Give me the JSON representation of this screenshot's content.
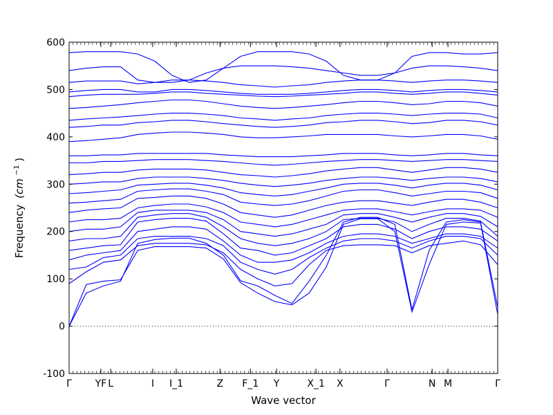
{
  "chart_data": {
    "type": "line",
    "xlabel": "Wave vector",
    "ylabel": "Frequency",
    "ylabel_unit": "(cm",
    "ylabel_exp": "−1",
    "ylim": [
      -100,
      600
    ],
    "yticks": [
      -100,
      0,
      100,
      200,
      300,
      400,
      500,
      600
    ],
    "grid": false,
    "zero_line": "dotted",
    "line_color": "#0000ff",
    "path_points": [
      {
        "label": "Γ",
        "pos": 0.0
      },
      {
        "label": "YF",
        "pos": 0.074
      },
      {
        "label": "L",
        "pos": 0.097
      },
      {
        "label": "I",
        "pos": 0.195
      },
      {
        "label": "I_1",
        "pos": 0.25
      },
      {
        "label": "Z",
        "pos": 0.352
      },
      {
        "label": "F_1",
        "pos": 0.423
      },
      {
        "label": "Y",
        "pos": 0.484
      },
      {
        "label": "X_1",
        "pos": 0.576
      },
      {
        "label": "X",
        "pos": 0.632
      },
      {
        "label": "Γ",
        "pos": 0.742
      },
      {
        "label": "N",
        "pos": 0.847
      },
      {
        "label": "M",
        "pos": 0.884
      },
      {
        "label": "Γ",
        "pos": 1.0
      }
    ],
    "series": [
      {
        "values": [
          0,
          88,
          95,
          98,
          160,
          168,
          168,
          168,
          165,
          142,
          92,
          70,
          52,
          45,
          70,
          125,
          215,
          227,
          227,
          200,
          30,
          130,
          215,
          220,
          218,
          25
        ]
      },
      {
        "values": [
          0,
          70,
          85,
          95,
          175,
          183,
          186,
          186,
          175,
          150,
          96,
          85,
          65,
          48,
          95,
          150,
          220,
          230,
          230,
          215,
          35,
          160,
          220,
          225,
          220,
          40
        ]
      },
      {
        "values": [
          90,
          115,
          135,
          140,
          170,
          175,
          175,
          175,
          172,
          155,
          120,
          100,
          85,
          90,
          130,
          160,
          170,
          172,
          172,
          170,
          155,
          170,
          175,
          180,
          172,
          130
        ]
      },
      {
        "values": [
          120,
          125,
          145,
          150,
          185,
          190,
          190,
          190,
          185,
          170,
          135,
          120,
          110,
          120,
          145,
          165,
          180,
          185,
          185,
          180,
          165,
          180,
          190,
          190,
          185,
          150
        ]
      },
      {
        "values": [
          140,
          150,
          155,
          160,
          200,
          205,
          210,
          210,
          205,
          180,
          150,
          135,
          135,
          140,
          155,
          175,
          190,
          195,
          195,
          190,
          175,
          185,
          195,
          195,
          190,
          165
        ]
      },
      {
        "values": [
          160,
          165,
          170,
          172,
          220,
          225,
          228,
          228,
          222,
          195,
          165,
          160,
          150,
          155,
          170,
          185,
          210,
          215,
          215,
          205,
          185,
          200,
          210,
          210,
          205,
          180
        ]
      },
      {
        "values": [
          180,
          185,
          185,
          190,
          230,
          235,
          238,
          238,
          230,
          210,
          185,
          175,
          170,
          175,
          185,
          200,
          225,
          228,
          228,
          220,
          200,
          215,
          228,
          228,
          222,
          190
        ]
      },
      {
        "values": [
          200,
          205,
          205,
          210,
          240,
          245,
          245,
          245,
          240,
          225,
          200,
          195,
          190,
          195,
          205,
          215,
          235,
          238,
          238,
          230,
          220,
          230,
          238,
          238,
          232,
          210
        ]
      },
      {
        "values": [
          220,
          225,
          225,
          228,
          250,
          255,
          258,
          258,
          252,
          240,
          220,
          215,
          210,
          215,
          225,
          235,
          245,
          248,
          248,
          242,
          235,
          242,
          248,
          248,
          245,
          230
        ]
      },
      {
        "values": [
          240,
          245,
          248,
          250,
          270,
          272,
          275,
          275,
          270,
          258,
          240,
          235,
          230,
          235,
          245,
          255,
          262,
          265,
          265,
          260,
          255,
          262,
          268,
          268,
          262,
          250
        ]
      },
      {
        "values": [
          260,
          262,
          265,
          268,
          285,
          288,
          290,
          290,
          285,
          278,
          262,
          258,
          255,
          258,
          265,
          275,
          285,
          288,
          288,
          282,
          275,
          280,
          285,
          285,
          282,
          270
        ]
      },
      {
        "values": [
          280,
          282,
          285,
          288,
          298,
          300,
          302,
          302,
          298,
          292,
          282,
          278,
          275,
          278,
          285,
          292,
          300,
          302,
          302,
          298,
          292,
          298,
          302,
          302,
          298,
          288
        ]
      },
      {
        "values": [
          300,
          302,
          305,
          305,
          312,
          315,
          315,
          315,
          312,
          308,
          302,
          298,
          295,
          298,
          302,
          308,
          312,
          315,
          315,
          312,
          308,
          312,
          315,
          315,
          312,
          305
        ]
      },
      {
        "values": [
          320,
          322,
          325,
          325,
          330,
          332,
          332,
          332,
          330,
          325,
          320,
          318,
          315,
          318,
          322,
          328,
          332,
          335,
          335,
          330,
          325,
          330,
          335,
          335,
          332,
          325
        ]
      },
      {
        "values": [
          345,
          345,
          348,
          348,
          350,
          352,
          352,
          352,
          350,
          348,
          345,
          342,
          340,
          342,
          345,
          348,
          350,
          352,
          352,
          350,
          348,
          350,
          352,
          352,
          350,
          348
        ]
      },
      {
        "values": [
          360,
          360,
          362,
          362,
          365,
          365,
          365,
          365,
          365,
          362,
          360,
          358,
          358,
          358,
          360,
          362,
          365,
          365,
          365,
          362,
          360,
          362,
          365,
          365,
          362,
          360
        ]
      },
      {
        "values": [
          390,
          392,
          395,
          398,
          405,
          408,
          410,
          410,
          408,
          405,
          400,
          398,
          398,
          400,
          402,
          405,
          405,
          405,
          405,
          402,
          400,
          402,
          405,
          405,
          402,
          395
        ]
      },
      {
        "values": [
          420,
          422,
          425,
          425,
          430,
          432,
          435,
          435,
          432,
          428,
          425,
          422,
          420,
          422,
          425,
          430,
          432,
          435,
          435,
          432,
          428,
          430,
          435,
          435,
          432,
          425
        ]
      },
      {
        "values": [
          435,
          438,
          440,
          442,
          445,
          448,
          450,
          450,
          448,
          445,
          440,
          438,
          435,
          438,
          440,
          445,
          448,
          450,
          450,
          448,
          445,
          448,
          450,
          450,
          448,
          440
        ]
      },
      {
        "values": [
          460,
          462,
          465,
          468,
          472,
          475,
          478,
          478,
          475,
          470,
          465,
          462,
          460,
          462,
          465,
          468,
          472,
          475,
          475,
          472,
          468,
          470,
          475,
          475,
          472,
          465
        ]
      },
      {
        "values": [
          485,
          488,
          490,
          490,
          490,
          492,
          495,
          495,
          492,
          490,
          488,
          486,
          485,
          486,
          488,
          490,
          492,
          495,
          495,
          492,
          490,
          492,
          495,
          495,
          492,
          488
        ]
      },
      {
        "values": [
          495,
          498,
          500,
          500,
          495,
          495,
          500,
          500,
          498,
          495,
          492,
          490,
          490,
          490,
          492,
          495,
          498,
          500,
          500,
          498,
          495,
          498,
          500,
          500,
          498,
          495
        ]
      },
      {
        "values": [
          515,
          518,
          518,
          518,
          512,
          515,
          520,
          520,
          518,
          515,
          510,
          508,
          505,
          508,
          510,
          515,
          518,
          520,
          520,
          518,
          515,
          518,
          520,
          520,
          518,
          515
        ]
      },
      {
        "values": [
          540,
          545,
          548,
          548,
          520,
          515,
          515,
          520,
          535,
          545,
          550,
          550,
          550,
          548,
          545,
          540,
          535,
          530,
          530,
          535,
          545,
          550,
          550,
          548,
          545,
          540
        ]
      },
      {
        "values": [
          578,
          580,
          580,
          580,
          575,
          560,
          530,
          515,
          520,
          545,
          570,
          580,
          580,
          580,
          575,
          560,
          530,
          520,
          520,
          535,
          570,
          578,
          578,
          575,
          575,
          578
        ]
      }
    ]
  }
}
